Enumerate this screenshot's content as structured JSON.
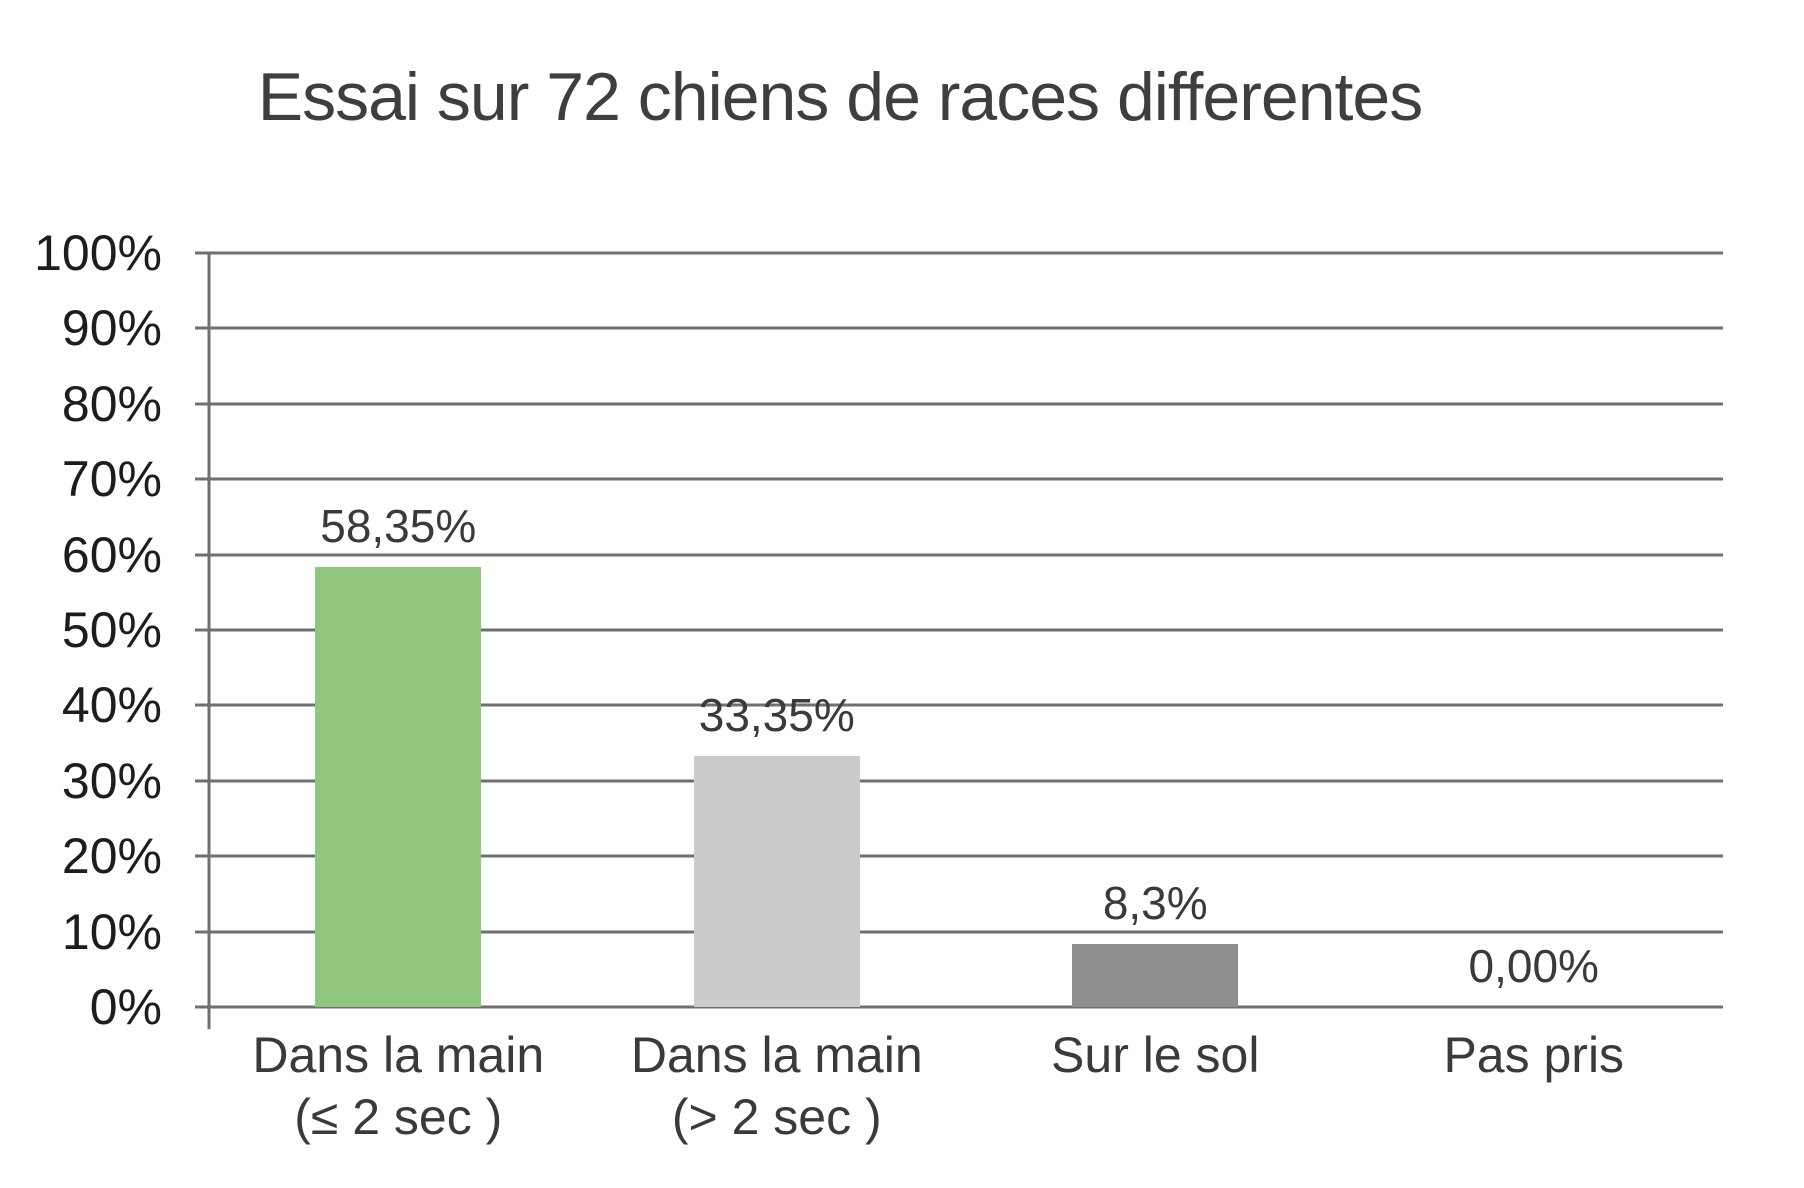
{
  "chart_data": {
    "type": "bar",
    "title": "Essai sur 72 chiens de races differentes",
    "categories": [
      "Dans la main (≤ 2 sec )",
      "Dans la main (> 2 sec )",
      "Sur le sol",
      "Pas pris"
    ],
    "categories_display": [
      {
        "line1": "Dans la main",
        "line2": "(≤ 2 sec )"
      },
      {
        "line1": "Dans la main",
        "line2": "(> 2 sec )"
      },
      {
        "line1": "Sur le sol",
        "line2": ""
      },
      {
        "line1": "Pas pris",
        "line2": ""
      }
    ],
    "values": [
      58.35,
      33.35,
      8.3,
      0
    ],
    "value_labels": [
      "58,35%",
      "33,35%",
      "8,3%",
      "0,00%"
    ],
    "bar_colors": [
      "#90c67e",
      "#cbcbcb",
      "#8f8f8f",
      "#90c67e"
    ],
    "yticks": [
      "100%",
      "90%",
      "80%",
      "70%",
      "60%",
      "50%",
      "40%",
      "30%",
      "20%",
      "10%",
      "0%"
    ],
    "ylim": [
      0,
      100
    ],
    "grid": "on",
    "legend": "none",
    "xlabel": "",
    "ylabel": ""
  },
  "colors": {
    "gridline": "#6f6f6f",
    "title_text": "#3e3e3e",
    "tick_text": "#1d1d1d",
    "label_text": "#3a3a3a",
    "background": "#ffffff"
  }
}
